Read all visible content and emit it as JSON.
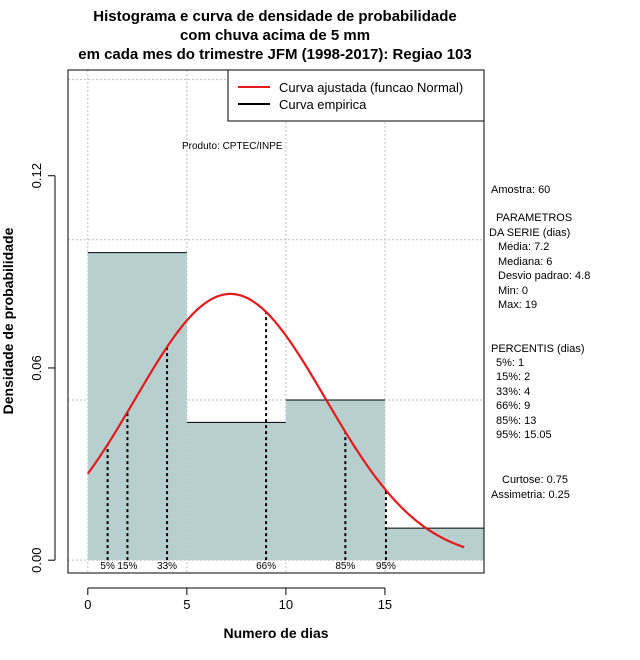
{
  "chart_data": {
    "type": "histogram",
    "title_lines": [
      "Histograma e curva de densidade de probabilidade",
      "com chuva acima de 5 mm",
      "em cada mes do trimestre JFM (1998-2017): Regiao 103"
    ],
    "xlabel": "Numero de dias",
    "ylabel": "Densidade de probabilidade",
    "xlim": [
      -1,
      20
    ],
    "ylim": [
      -0.004,
      0.153
    ],
    "x_ticks": [
      0,
      5,
      10,
      15
    ],
    "y_ticks": [
      0.0,
      0.06,
      0.12
    ],
    "y_tick_labels": [
      "0.00",
      "0.06",
      "0.12"
    ],
    "grid_x": [
      0,
      5,
      10,
      15
    ],
    "grid_y": [
      0.0,
      0.05,
      0.1,
      0.15
    ],
    "bins": [
      {
        "x0": 0,
        "x1": 5,
        "density": 0.096
      },
      {
        "x0": 5,
        "x1": 10,
        "density": 0.043
      },
      {
        "x0": 10,
        "x1": 15,
        "density": 0.05
      },
      {
        "x0": 15,
        "x1": 20,
        "density": 0.01
      }
    ],
    "normal_fit": {
      "mean": 7.2,
      "sd": 4.8,
      "x_from": 0,
      "x_to": 19
    },
    "percentile_lines": [
      {
        "label": "5%",
        "x": 1
      },
      {
        "label": "15%",
        "x": 2
      },
      {
        "label": "33%",
        "x": 4
      },
      {
        "label": "66%",
        "x": 9
      },
      {
        "label": "85%",
        "x": 13
      },
      {
        "label": "95%",
        "x": 15.05
      }
    ],
    "legend": [
      {
        "label": "Curva ajustada (funcao Normal)",
        "color": "#e31a1c"
      },
      {
        "label": "Curva empirica",
        "color": "#000000"
      }
    ],
    "annotation": "Produto: CPTEC/INPE",
    "colors": {
      "bar_fill": "#b7cfcf",
      "curve": "#e31a1c",
      "grid": "#bdbdbd"
    }
  },
  "stats": {
    "amostra": "Amostra: 60",
    "param_header_1": "PARAMETROS",
    "param_header_2": "DA SERIE (dias)",
    "params": [
      "Media: 7.2",
      "Mediana: 6",
      "Desvio padrao: 4.8",
      "Min: 0",
      "Max: 19"
    ],
    "perc_header": "PERCENTIS (dias)",
    "percentis": [
      "5%: 1",
      "15%: 2",
      "33%: 4",
      "66%: 9",
      "85%: 13",
      "95%: 15.05"
    ],
    "curtose": "Curtose: 0.75",
    "assimetria": "Assimetria: 0.25"
  }
}
